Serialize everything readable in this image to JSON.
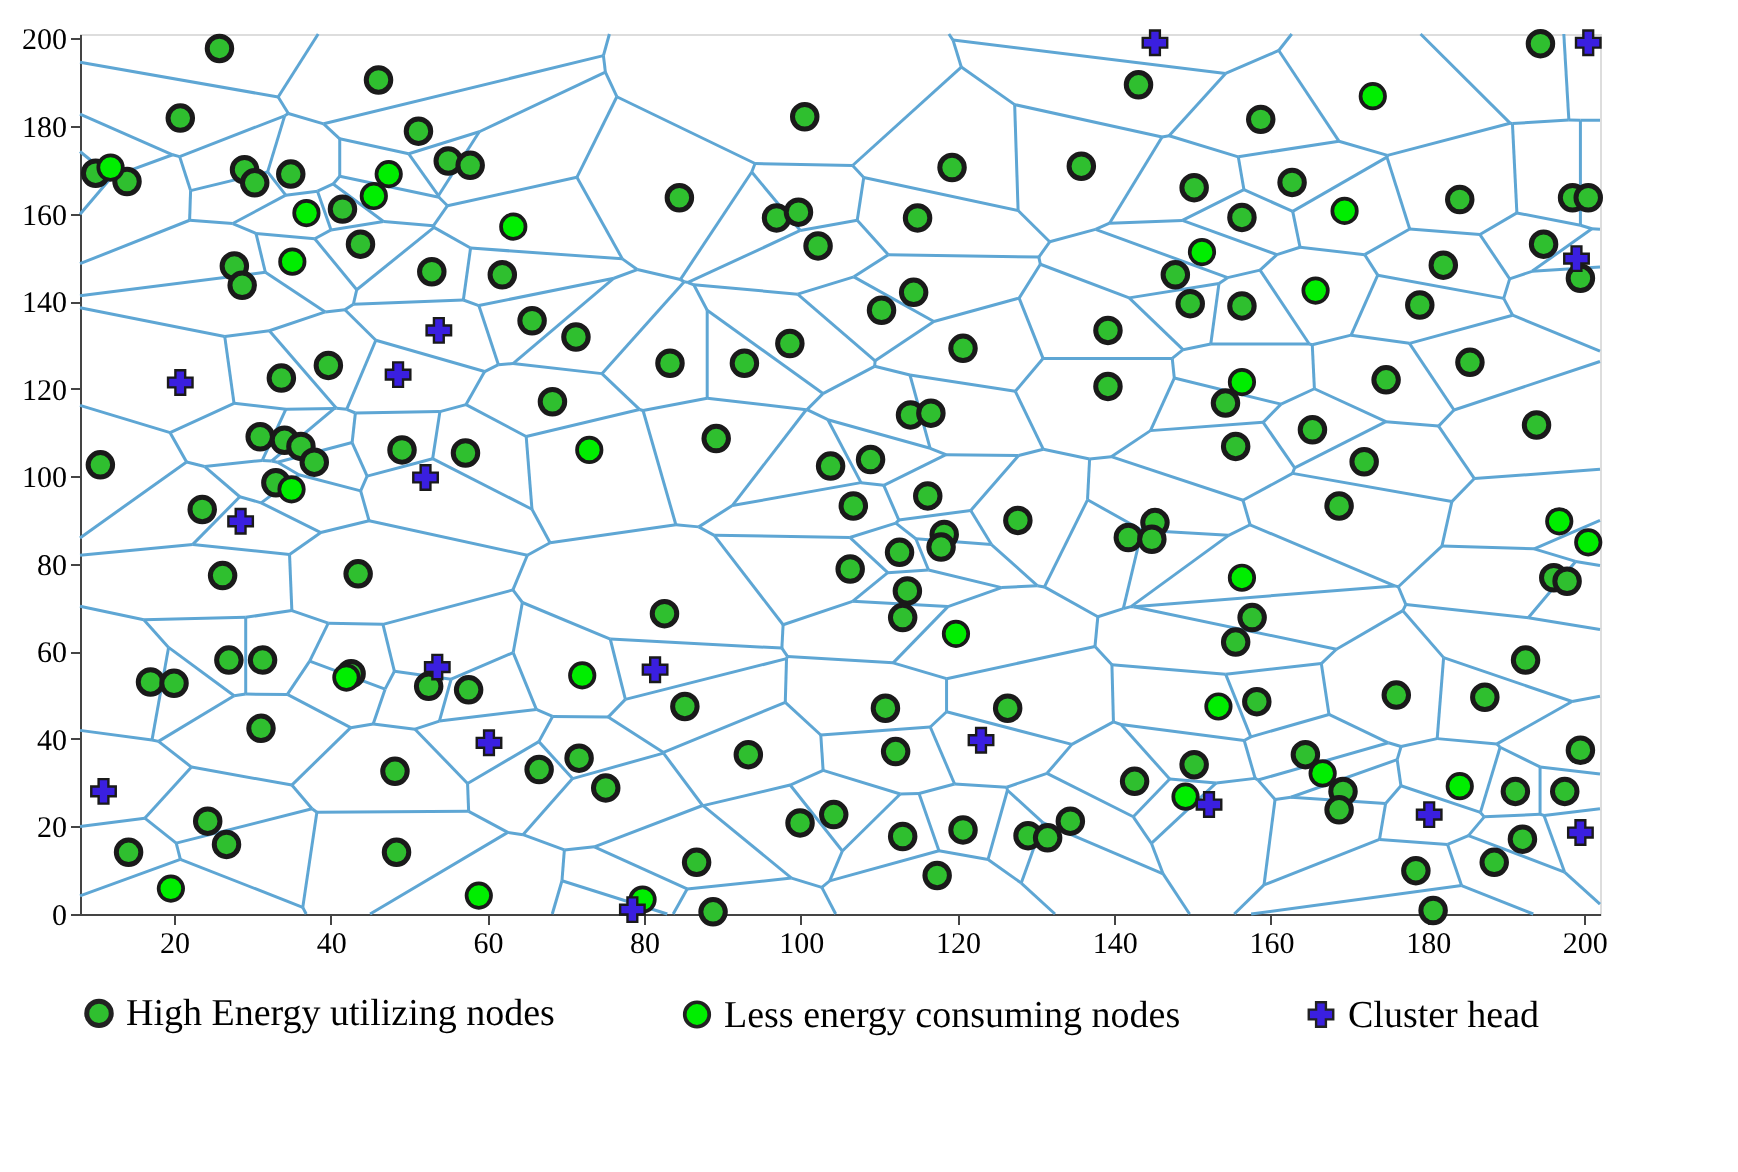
{
  "chart_data": {
    "type": "scatter",
    "xlim": [
      8,
      202
    ],
    "ylim": [
      0,
      201
    ],
    "xticks": [
      20,
      40,
      60,
      80,
      100,
      120,
      140,
      160,
      180,
      200
    ],
    "yticks": [
      0,
      20,
      40,
      60,
      80,
      100,
      120,
      140,
      160,
      180,
      200
    ],
    "legend": "bottom",
    "series": [
      {
        "name": "High Energy utilizing nodes",
        "color": "#2fbf2f",
        "marker": "circle",
        "x": [
          25.8,
          46.1,
          20.8,
          51.2,
          10,
          14,
          29,
          30.3,
          34.9,
          41.5,
          55,
          57.8,
          43.8,
          27.7,
          28.7,
          52.9,
          61.9,
          65.7,
          71.3,
          33.7,
          39.7,
          68.3,
          49.1,
          57.2,
          10.6,
          31,
          34.1,
          36.2,
          37.9,
          33,
          100.5,
          84.5,
          119.3,
          135.8,
          96.9,
          99.7,
          102.2,
          114.9,
          114.4,
          110.3,
          98.6,
          120.7,
          83.3,
          92.8,
          114,
          116.6,
          89.2,
          103.8,
          108.9,
          139.2,
          139.2,
          194.4,
          143.1,
          158.7,
          150.2,
          162.7,
          156.3,
          184.1,
          198.5,
          200.5,
          194.8,
          199.5,
          147.8,
          149.7,
          156.3,
          182,
          179,
          154.2,
          174.7,
          185.4,
          193.9,
          155.5,
          165.3,
          171.9,
          23.6,
          26.2,
          43.5,
          27,
          31.3,
          17,
          20,
          42.6,
          52.5,
          57.6,
          31.1,
          66.6,
          71.7,
          48.2,
          24.3,
          26.7,
          14.2,
          48.4,
          106.7,
          116.2,
          127.7,
          118.3,
          117.9,
          112.6,
          106.3,
          113.6,
          113,
          82.6,
          85.2,
          110.8,
          126.4,
          112.1,
          93.3,
          75.1,
          99.9,
          104.2,
          113,
          120.7,
          129,
          131.5,
          134.4,
          117.4,
          86.7,
          88.8,
          168.7,
          145.2,
          141.8,
          144.8,
          196.1,
          197.8,
          157.6,
          155.5,
          192.5,
          158.2,
          176,
          187.3,
          199.5,
          142.6,
          150.2,
          164.4,
          169.2,
          168.7,
          191.2,
          197.5,
          192.1,
          188.5,
          178.5,
          180.7
        ],
        "values": [
          197.7,
          190.5,
          181.8,
          178.8,
          169.2,
          167.3,
          170,
          167,
          169,
          161,
          172,
          171,
          153,
          148,
          143.6,
          146.7,
          146,
          135.5,
          131.8,
          122.4,
          125.3,
          117,
          106,
          105.3,
          102.6,
          109,
          108.2,
          106.8,
          103.2,
          98.5,
          182.1,
          163.6,
          170.5,
          170.8,
          159,
          160.3,
          152.6,
          159,
          142,
          137.9,
          130.3,
          129.2,
          125.8,
          125.8,
          114,
          114.4,
          108.6,
          102.3,
          103.8,
          133.3,
          120.5,
          198.8,
          189.4,
          181.5,
          165.9,
          167.1,
          159.1,
          163.2,
          163.6,
          163.6,
          153,
          145.2,
          146,
          139.4,
          138.9,
          148.2,
          139.1,
          116.7,
          122,
          126,
          111.7,
          106.8,
          110.6,
          103.3,
          92.4,
          77.3,
          77.7,
          58,
          58,
          53,
          52.7,
          54.9,
          52,
          51.2,
          42.4,
          33,
          35.6,
          32.6,
          21.2,
          15.9,
          14.1,
          14.1,
          93.2,
          95.5,
          89.9,
          86.7,
          83.8,
          82.6,
          78.8,
          73.8,
          67.7,
          68.6,
          47.4,
          47,
          47,
          37.1,
          36.4,
          28.8,
          20.8,
          22.7,
          17.7,
          19.2,
          17.9,
          17.4,
          21.2,
          8.8,
          11.8,
          0.5,
          93.2,
          89.4,
          86,
          85.6,
          76.8,
          76,
          67.7,
          62.1,
          58,
          48.5,
          50,
          49.5,
          37.4,
          30.3,
          34.1,
          36.4,
          28,
          23.8,
          28,
          28,
          17.1,
          11.8,
          9.9,
          0.8
        ]
      },
      {
        "name": "Less energy consuming nodes",
        "color": "#00ee00",
        "marker": "circle",
        "x": [
          11.9,
          36.9,
          45.5,
          47.4,
          63.3,
          35.1,
          73,
          173,
          169.4,
          151.2,
          165.7,
          156.3,
          35,
          42,
          72.1,
          19.6,
          58.9,
          119.8,
          79.8,
          196.8,
          200.5,
          156.3,
          153.3,
          149.1,
          166.6,
          184.1
        ],
        "values": [
          170.5,
          160.1,
          164,
          169,
          157,
          149,
          106,
          186.8,
          160.6,
          151.2,
          142.4,
          121.5,
          97,
          54,
          54.5,
          5.8,
          4.2,
          64,
          3.3,
          89.7,
          84.9,
          76.8,
          47.4,
          26.8,
          32.1,
          29.2
        ]
      },
      {
        "name": "Cluster head",
        "color": "#3a1fe0",
        "marker": "cross",
        "x": [
          145.2,
          200.5,
          53.8,
          20.8,
          48.6,
          52.1,
          28.5,
          53.6,
          60.2,
          11,
          81.4,
          123,
          78.5,
          199,
          152.1,
          180.2,
          199.5
        ],
        "values": [
          199,
          199,
          133.3,
          121.4,
          123.2,
          99.7,
          89.7,
          56.4,
          39.1,
          28,
          55.8,
          39.7,
          1,
          149.7,
          25,
          22.7,
          18.6
        ]
      }
    ]
  }
}
